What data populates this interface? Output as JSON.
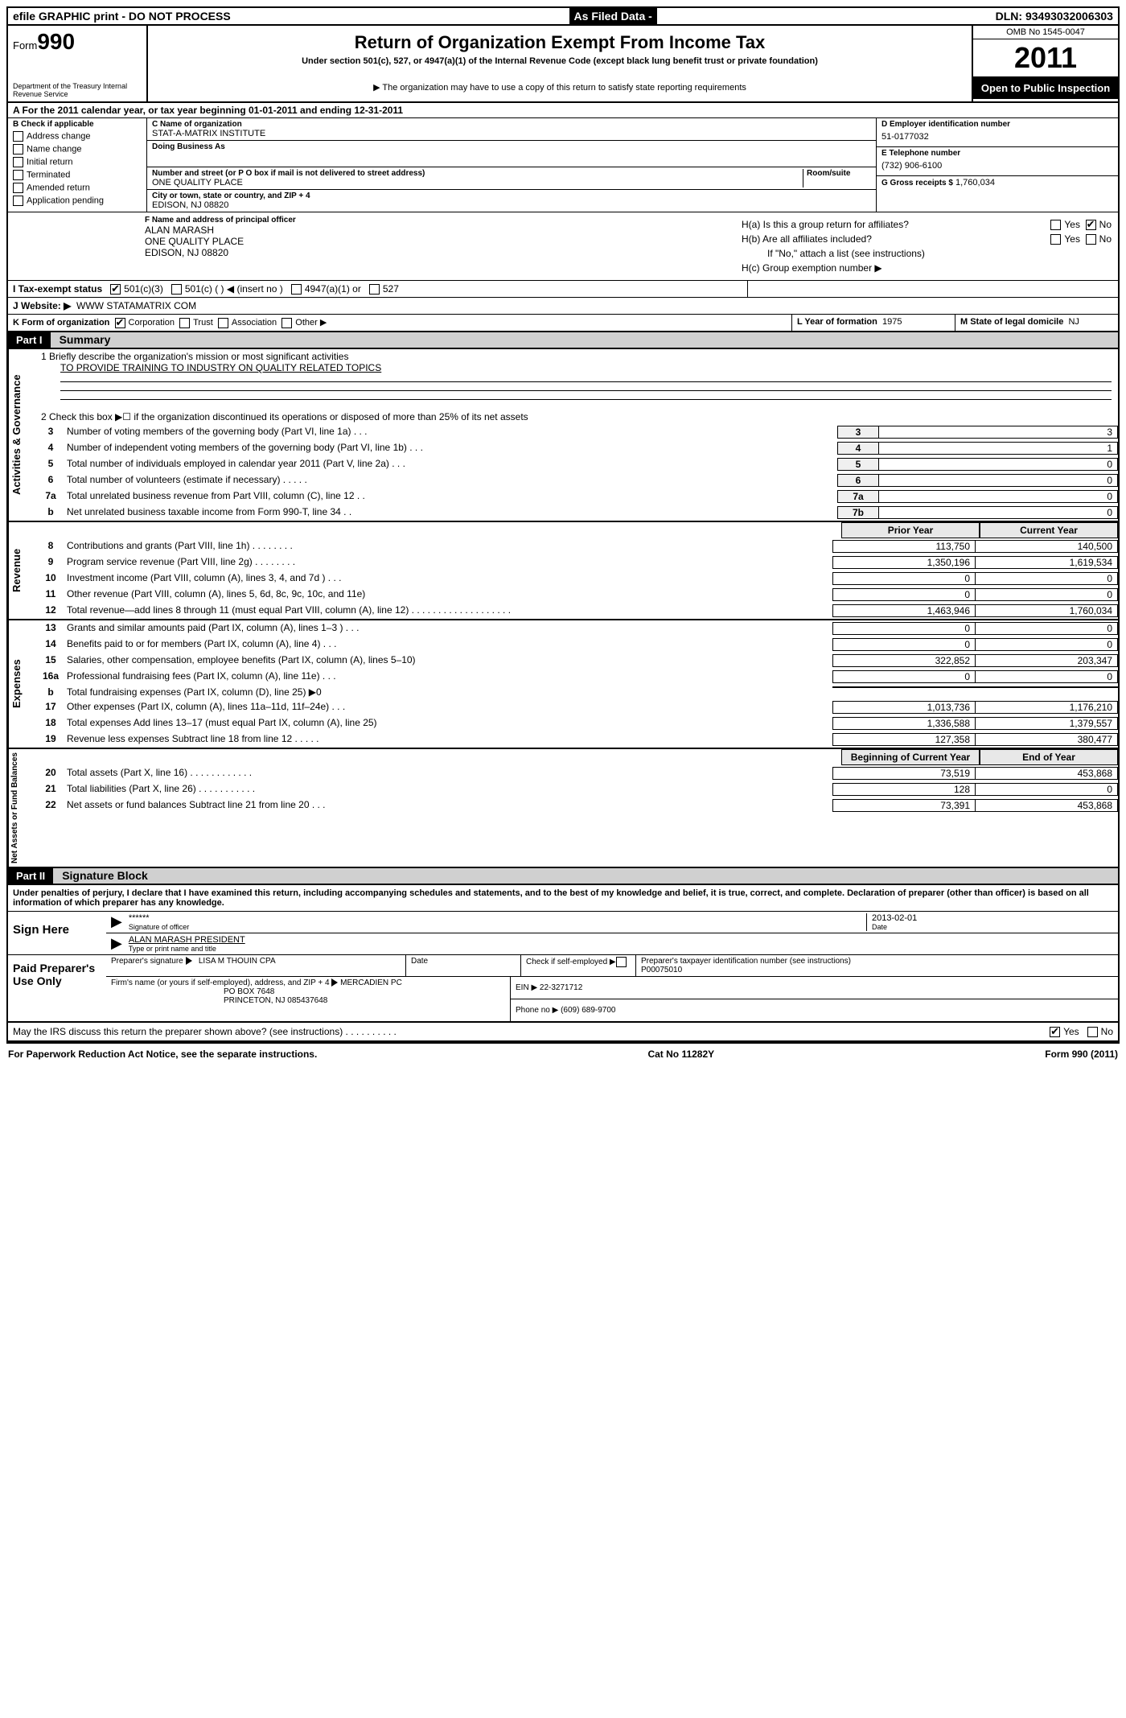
{
  "topbar": {
    "left": "efile GRAPHIC print - DO NOT PROCESS",
    "mid": "As Filed Data -",
    "right": "DLN: 93493032006303"
  },
  "header": {
    "form_label": "Form",
    "form_num": "990",
    "dept": "Department of the Treasury\nInternal Revenue Service",
    "title": "Return of Organization Exempt From Income Tax",
    "subtitle": "Under section 501(c), 527, or 4947(a)(1) of the Internal Revenue Code (except black lung benefit trust or private foundation)",
    "note": "▶ The organization may have to use a copy of this return to satisfy state reporting requirements",
    "omb": "OMB No 1545-0047",
    "year": "2011",
    "inspect": "Open to Public Inspection"
  },
  "row_a": "A  For the 2011 calendar year, or tax year beginning 01-01-2011    and ending 12-31-2011",
  "col_b": {
    "hdr": "B Check if applicable",
    "items": [
      "Address change",
      "Name change",
      "Initial return",
      "Terminated",
      "Amended return",
      "Application pending"
    ]
  },
  "col_c": {
    "name_lbl": "C Name of organization",
    "name": "STAT-A-MATRIX INSTITUTE",
    "dba_lbl": "Doing Business As",
    "dba": "",
    "street_lbl": "Number and street (or P O  box if mail is not delivered to street address)",
    "room_lbl": "Room/suite",
    "street": "ONE QUALITY PLACE",
    "city_lbl": "City or town, state or country, and ZIP + 4",
    "city": "EDISON, NJ  08820"
  },
  "col_d": {
    "ein_lbl": "D Employer identification number",
    "ein": "51-0177032",
    "tel_lbl": "E Telephone number",
    "tel": "(732) 906-6100",
    "gross_lbl": "G Gross receipts $",
    "gross": "1,760,034"
  },
  "col_f": {
    "lbl": "F  Name and address of principal officer",
    "name": "ALAN MARASH",
    "addr1": "ONE QUALITY PLACE",
    "addr2": "EDISON, NJ  08820"
  },
  "col_h": {
    "ha": "H(a)  Is this a group return for affiliates?",
    "hb": "H(b)  Are all affiliates included?",
    "hb_note": "If \"No,\" attach a list  (see instructions)",
    "hc": "H(c)   Group exemption number ▶"
  },
  "row_i": {
    "lbl": "I   Tax-exempt status",
    "opts": [
      "501(c)(3)",
      "501(c) (   ) ◀ (insert no )",
      "4947(a)(1) or",
      "527"
    ]
  },
  "row_j": {
    "lbl": "J   Website: ▶",
    "val": "WWW STATAMATRIX COM"
  },
  "row_k": {
    "form_lbl": "K Form of organization",
    "opts": [
      "Corporation",
      "Trust",
      "Association",
      "Other ▶"
    ],
    "yf_lbl": "L Year of formation",
    "yf": "1975",
    "state_lbl": "M State of legal domicile",
    "state": "NJ"
  },
  "part1": {
    "num": "Part I",
    "title": "Summary"
  },
  "summary": {
    "mission_lbl": "1   Briefly describe the organization's mission or most significant activities",
    "mission": "TO PROVIDE TRAINING TO INDUSTRY ON QUALITY RELATED TOPICS",
    "line2": "2   Check this box ▶☐ if the organization discontinued its operations or disposed of more than 25% of its net assets",
    "ag_lines": [
      {
        "n": "3",
        "d": "Number of voting members of the governing body (Part VI, line 1a)   .   .   .",
        "box": "3",
        "v": "3"
      },
      {
        "n": "4",
        "d": "Number of independent voting members of the governing body (Part VI, line 1b)    .   .   .",
        "box": "4",
        "v": "1"
      },
      {
        "n": "5",
        "d": "Total number of individuals employed in calendar year 2011 (Part V, line 2a)    .   .   .",
        "box": "5",
        "v": "0"
      },
      {
        "n": "6",
        "d": "Total number of volunteers (estimate if necessary)    .   .   .   .   .",
        "box": "6",
        "v": "0"
      },
      {
        "n": "7a",
        "d": "Total unrelated business revenue from Part VIII, column (C), line 12   .   .",
        "box": "7a",
        "v": "0"
      },
      {
        "n": "b",
        "d": "Net unrelated business taxable income from Form 990-T, line 34   .   .",
        "box": "7b",
        "v": "0"
      }
    ],
    "col_hdrs": {
      "prior": "Prior Year",
      "curr": "Current Year"
    },
    "rev_lines": [
      {
        "n": "8",
        "d": "Contributions and grants (Part VIII, line 1h)   .   .   .   .   .   .   .   .",
        "p": "113,750",
        "c": "140,500"
      },
      {
        "n": "9",
        "d": "Program service revenue (Part VIII, line 2g)    .   .   .   .   .   .   .   .",
        "p": "1,350,196",
        "c": "1,619,534"
      },
      {
        "n": "10",
        "d": "Investment income (Part VIII, column (A), lines 3, 4, and 7d )    .   .   .",
        "p": "0",
        "c": "0"
      },
      {
        "n": "11",
        "d": "Other revenue (Part VIII, column (A), lines 5, 6d, 8c, 9c, 10c, and 11e)",
        "p": "0",
        "c": "0"
      },
      {
        "n": "12",
        "d": "Total revenue—add lines 8 through 11 (must equal Part VIII, column (A), line 12) .   .   .   .   .   .   .   .   .   .   .   .   .   .   .   .   .   .   .",
        "p": "1,463,946",
        "c": "1,760,034"
      }
    ],
    "exp_lines": [
      {
        "n": "13",
        "d": "Grants and similar amounts paid (Part IX, column (A), lines 1–3 )   .   .   .",
        "p": "0",
        "c": "0"
      },
      {
        "n": "14",
        "d": "Benefits paid to or for members (Part IX, column (A), line 4)    .   .   .",
        "p": "0",
        "c": "0"
      },
      {
        "n": "15",
        "d": "Salaries, other compensation, employee benefits (Part IX, column (A), lines 5–10)",
        "p": "322,852",
        "c": "203,347"
      },
      {
        "n": "16a",
        "d": "Professional fundraising fees (Part IX, column (A), line 11e)    .   .   .",
        "p": "0",
        "c": "0"
      },
      {
        "n": "b",
        "d": "Total fundraising expenses (Part IX, column (D), line 25) ▶0",
        "p": "",
        "c": "",
        "gray": true
      },
      {
        "n": "17",
        "d": "Other expenses (Part IX, column (A), lines 11a–11d, 11f–24e)    .   .   .",
        "p": "1,013,736",
        "c": "1,176,210"
      },
      {
        "n": "18",
        "d": "Total expenses  Add lines 13–17 (must equal Part IX, column (A), line 25)",
        "p": "1,336,588",
        "c": "1,379,557"
      },
      {
        "n": "19",
        "d": "Revenue less expenses  Subtract line 18 from line 12    .   .   .   .   .",
        "p": "127,358",
        "c": "380,477"
      }
    ],
    "na_hdrs": {
      "prior": "Beginning of Current Year",
      "curr": "End of Year"
    },
    "na_lines": [
      {
        "n": "20",
        "d": "Total assets (Part X, line 16)  .   .   .   .   .   .   .   .   .   .   .   .",
        "p": "73,519",
        "c": "453,868"
      },
      {
        "n": "21",
        "d": "Total liabilities (Part X, line 26)   .   .   .   .   .   .   .   .   .   .   .",
        "p": "128",
        "c": "0"
      },
      {
        "n": "22",
        "d": "Net assets or fund balances  Subtract line 21 from line 20   .   .   .",
        "p": "73,391",
        "c": "453,868"
      }
    ],
    "sidebars": {
      "ag": "Activities & Governance",
      "rev": "Revenue",
      "exp": "Expenses",
      "na": "Net Assets or\nFund Balances"
    }
  },
  "part2": {
    "num": "Part II",
    "title": "Signature Block"
  },
  "sig": {
    "decl": "Under penalties of perjury, I declare that I have examined this return, including accompanying schedules and statements, and to the best of my knowledge and belief, it is true, correct, and complete. Declaration of preparer (other than officer) is based on all information of which preparer has any knowledge.",
    "sign_here": "Sign Here",
    "sig_mask": "******",
    "sig_lbl": "Signature of officer",
    "date": "2013-02-01",
    "date_lbl": "Date",
    "name": "ALAN MARASH PRESIDENT",
    "name_lbl": "Type or print name and title",
    "paid_lbl": "Paid Preparer's Use Only",
    "prep_sig_lbl": "Preparer's signature",
    "prep_name": "LISA M THOUIN CPA",
    "prep_date_lbl": "Date",
    "self_emp_lbl": "Check if self-employed ▶",
    "ptin_lbl": "Preparer's taxpayer identification number (see instructions)",
    "ptin": "P00075010",
    "firm_lbl": "Firm's name (or yours if self-employed), address, and ZIP + 4",
    "firm_name": "MERCADIEN PC",
    "firm_addr1": "PO BOX 7648",
    "firm_addr2": "PRINCETON, NJ  085437648",
    "ein_lbl": "EIN ▶",
    "ein": "22-3271712",
    "phone_lbl": "Phone no  ▶",
    "phone": "(609) 689-9700",
    "discuss": "May the IRS discuss this return the preparer shown above? (see instructions)   .   .   .   .   .   .   .   .   .   ."
  },
  "footer": {
    "left": "For Paperwork Reduction Act Notice, see the separate instructions.",
    "mid": "Cat No 11282Y",
    "right": "Form 990 (2011)"
  }
}
